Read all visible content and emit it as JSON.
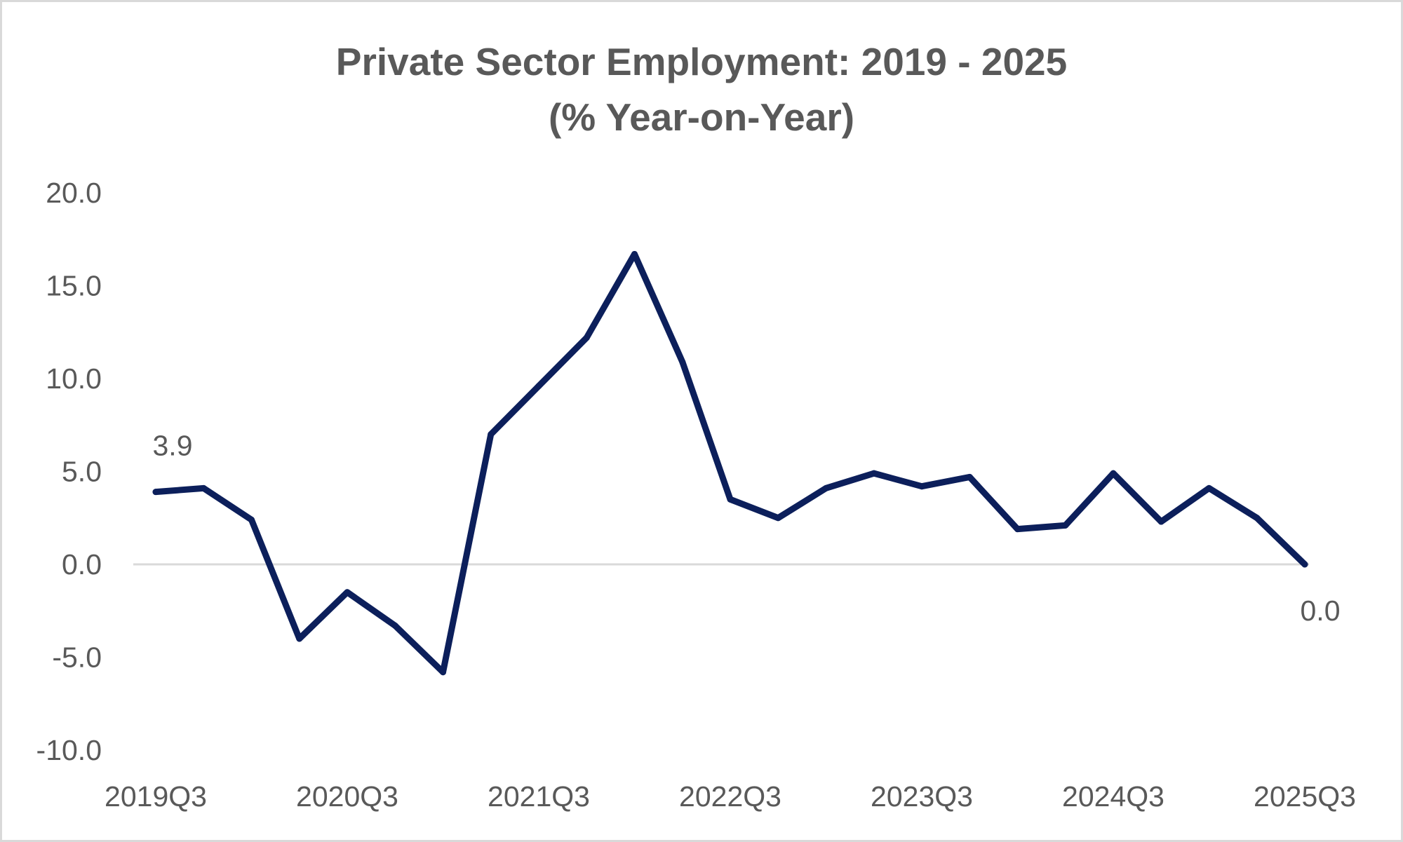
{
  "chart_data": {
    "type": "line",
    "title": "Private Sector Employment:  2019 - 2025",
    "subtitle": "(% Year-on-Year)",
    "xlabel": "",
    "ylabel": "",
    "ylim": [
      -10,
      20
    ],
    "y_ticks": [
      "20.0",
      "15.0",
      "10.0",
      "5.0",
      "0.0",
      "-5.0",
      "-10.0"
    ],
    "y_tick_values": [
      20,
      15,
      10,
      5,
      0,
      -5,
      -10
    ],
    "x_tick_labels": [
      "2019Q3",
      "2020Q3",
      "2021Q3",
      "2022Q3",
      "2023Q3",
      "2024Q3",
      "2025Q3"
    ],
    "x_tick_index": [
      0,
      4,
      8,
      12,
      16,
      20,
      24
    ],
    "categories": [
      "2019Q3",
      "2019Q4",
      "2020Q1",
      "2020Q2",
      "2020Q3",
      "2020Q4",
      "2021Q1",
      "2021Q2",
      "2021Q3",
      "2021Q4",
      "2022Q1",
      "2022Q2",
      "2022Q3",
      "2022Q4",
      "2023Q1",
      "2023Q2",
      "2023Q3",
      "2023Q4",
      "2024Q1",
      "2024Q2",
      "2024Q3",
      "2024Q4",
      "2025Q1",
      "2025Q2",
      "2025Q3"
    ],
    "series": [
      {
        "name": "Private Sector Employment (% YoY)",
        "color": "#0c1f5b",
        "values": [
          3.9,
          4.1,
          2.4,
          -4.0,
          -1.5,
          -3.3,
          -5.8,
          7.0,
          9.6,
          12.2,
          16.7,
          10.9,
          3.5,
          2.5,
          4.1,
          4.9,
          4.2,
          4.7,
          1.9,
          2.1,
          4.9,
          2.3,
          4.1,
          2.5,
          0.0
        ]
      }
    ],
    "data_labels": [
      {
        "index": 0,
        "text": "3.9"
      },
      {
        "index": 24,
        "text": "0.0"
      }
    ],
    "zero_line": true,
    "grid": false,
    "legend": "none"
  }
}
